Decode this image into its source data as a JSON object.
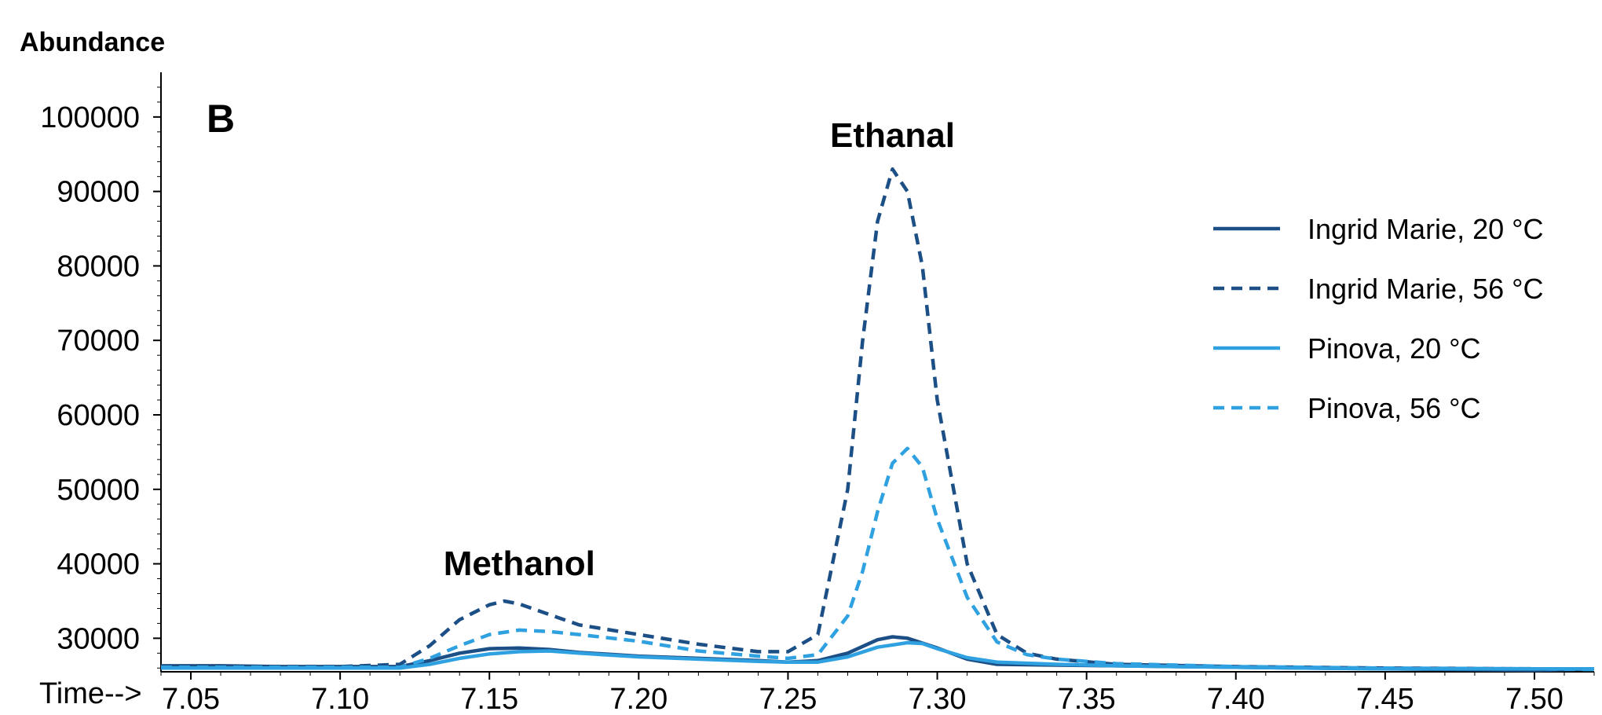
{
  "chart_data": {
    "type": "line",
    "panel_label": "B",
    "ylabel": "Abundance",
    "xlabel": "Time-->",
    "xlim": [
      7.04,
      7.52
    ],
    "ylim": [
      25500,
      106000
    ],
    "x_ticks": [
      "7.05",
      "7.10",
      "7.15",
      "7.20",
      "7.25",
      "7.30",
      "7.35",
      "7.40",
      "7.45",
      "7.50"
    ],
    "y_ticks": [
      "30000",
      "40000",
      "50000",
      "60000",
      "70000",
      "80000",
      "90000",
      "100000"
    ],
    "legend_position": "right",
    "annotations": [
      {
        "text": "Methanol",
        "x": 7.16,
        "y": 38500
      },
      {
        "text": "Ethanal",
        "x": 7.285,
        "y": 96000
      }
    ],
    "series": [
      {
        "name": "Ingrid Marie, 20 °C",
        "color": "#1b4f86",
        "dash": "solid",
        "x": [
          7.04,
          7.06,
          7.08,
          7.1,
          7.12,
          7.13,
          7.14,
          7.15,
          7.16,
          7.17,
          7.18,
          7.2,
          7.22,
          7.24,
          7.25,
          7.26,
          7.27,
          7.28,
          7.285,
          7.29,
          7.3,
          7.31,
          7.32,
          7.34,
          7.36,
          7.4,
          7.45,
          7.5,
          7.52
        ],
        "values": [
          26300,
          26300,
          26200,
          26200,
          26200,
          27000,
          28000,
          28600,
          28700,
          28500,
          28100,
          27600,
          27300,
          27000,
          26800,
          27000,
          28000,
          29800,
          30200,
          30000,
          28700,
          27200,
          26500,
          26400,
          26300,
          26100,
          25900,
          25700,
          25900
        ]
      },
      {
        "name": "Ingrid Marie, 56 °C",
        "color": "#1b4f86",
        "dash": "dashed",
        "x": [
          7.04,
          7.06,
          7.08,
          7.1,
          7.12,
          7.13,
          7.14,
          7.15,
          7.155,
          7.16,
          7.17,
          7.18,
          7.2,
          7.22,
          7.24,
          7.25,
          7.26,
          7.27,
          7.275,
          7.28,
          7.285,
          7.29,
          7.295,
          7.3,
          7.31,
          7.32,
          7.33,
          7.34,
          7.36,
          7.4,
          7.45,
          7.5,
          7.52
        ],
        "values": [
          26200,
          26200,
          26200,
          26200,
          26500,
          29000,
          32500,
          34500,
          35000,
          34600,
          33200,
          31800,
          30500,
          29200,
          28200,
          28200,
          30500,
          50000,
          70000,
          86000,
          93000,
          90000,
          80000,
          62000,
          40000,
          30500,
          28000,
          27200,
          26500,
          26200,
          26000,
          25900,
          25900
        ]
      },
      {
        "name": "Pinova, 20 °C",
        "color": "#2fa1e0",
        "dash": "solid",
        "x": [
          7.04,
          7.06,
          7.08,
          7.1,
          7.12,
          7.13,
          7.14,
          7.15,
          7.16,
          7.17,
          7.18,
          7.2,
          7.22,
          7.24,
          7.25,
          7.26,
          7.27,
          7.28,
          7.29,
          7.295,
          7.3,
          7.31,
          7.32,
          7.34,
          7.36,
          7.4,
          7.45,
          7.5,
          7.52
        ],
        "values": [
          26000,
          26000,
          26000,
          26000,
          26000,
          26500,
          27300,
          27900,
          28200,
          28300,
          28000,
          27500,
          27200,
          26900,
          26800,
          26800,
          27500,
          28800,
          29400,
          29300,
          28600,
          27400,
          26800,
          26500,
          26300,
          26100,
          25900,
          25900,
          25900
        ]
      },
      {
        "name": "Pinova, 56 °C",
        "color": "#2fa1e0",
        "dash": "dashed",
        "x": [
          7.04,
          7.06,
          7.08,
          7.1,
          7.12,
          7.13,
          7.14,
          7.15,
          7.16,
          7.17,
          7.18,
          7.2,
          7.22,
          7.24,
          7.25,
          7.26,
          7.27,
          7.275,
          7.28,
          7.285,
          7.29,
          7.295,
          7.3,
          7.31,
          7.32,
          7.33,
          7.34,
          7.36,
          7.4,
          7.45,
          7.5,
          7.52
        ],
        "values": [
          26100,
          26100,
          26100,
          26100,
          26100,
          27300,
          29000,
          30500,
          31100,
          30900,
          30500,
          29600,
          28300,
          27600,
          27300,
          27800,
          33000,
          39000,
          47000,
          53500,
          55500,
          53000,
          46000,
          35500,
          29500,
          27800,
          27200,
          26600,
          26200,
          26000,
          25900,
          25800
        ]
      }
    ]
  }
}
